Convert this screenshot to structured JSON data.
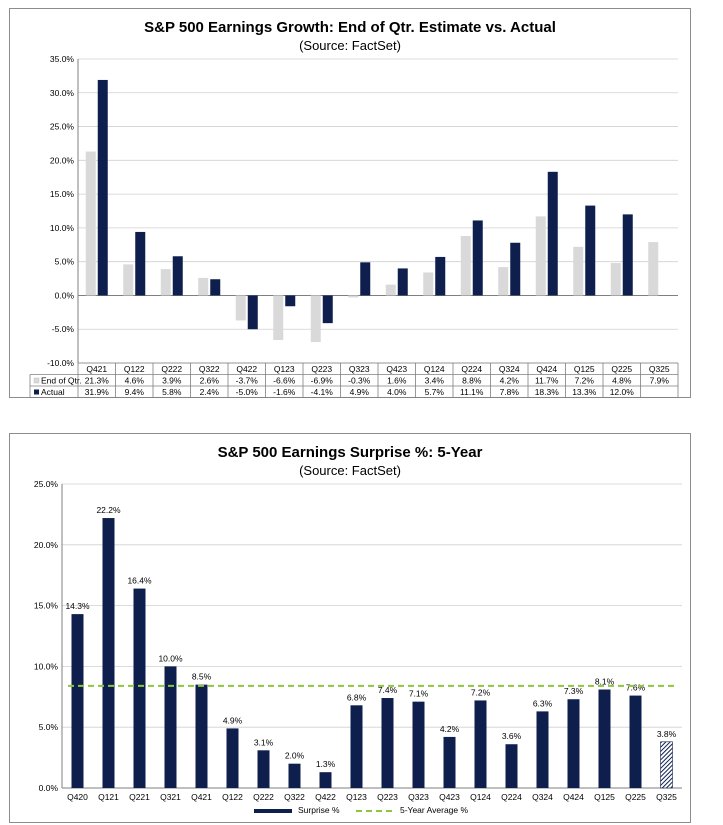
{
  "chart_data": [
    {
      "type": "bar",
      "title": "S&P 500 Earnings Growth: End of Qtr. Estimate vs. Actual",
      "subtitle": "(Source: FactSet)",
      "categories": [
        "Q421",
        "Q122",
        "Q222",
        "Q322",
        "Q422",
        "Q123",
        "Q223",
        "Q323",
        "Q423",
        "Q124",
        "Q224",
        "Q324",
        "Q424",
        "Q125",
        "Q225",
        "Q325"
      ],
      "series": [
        {
          "name": "End of Qtr.",
          "values": [
            21.3,
            4.6,
            3.9,
            2.6,
            -3.7,
            -6.6,
            -6.9,
            -0.3,
            1.6,
            3.4,
            8.8,
            4.2,
            11.7,
            7.2,
            4.8,
            7.9
          ],
          "labels": [
            "21.3%",
            "4.6%",
            "3.9%",
            "2.6%",
            "-3.7%",
            "-6.6%",
            "-6.9%",
            "-0.3%",
            "1.6%",
            "3.4%",
            "8.8%",
            "4.2%",
            "11.7%",
            "7.2%",
            "4.8%",
            "7.9%"
          ],
          "color": "#d9d9d9"
        },
        {
          "name": "Actual",
          "values": [
            31.9,
            9.4,
            5.8,
            2.4,
            -5.0,
            -1.6,
            -4.1,
            4.9,
            4.0,
            5.7,
            11.1,
            7.8,
            18.3,
            13.3,
            12.0,
            null
          ],
          "labels": [
            "31.9%",
            "9.4%",
            "5.8%",
            "2.4%",
            "-5.0%",
            "-1.6%",
            "-4.1%",
            "4.9%",
            "4.0%",
            "5.7%",
            "11.1%",
            "7.8%",
            "18.3%",
            "13.3%",
            "12.0%",
            ""
          ],
          "color": "#0f1f4d"
        }
      ],
      "ylim": [
        -10,
        35
      ],
      "yticks": [
        "-10.0%",
        "-5.0%",
        "0.0%",
        "5.0%",
        "10.0%",
        "15.0%",
        "20.0%",
        "25.0%",
        "30.0%",
        "35.0%"
      ],
      "grid": true,
      "legend": "data-table"
    },
    {
      "type": "bar",
      "title": "S&P 500 Earnings Surprise %: 5-Year",
      "subtitle": "(Source: FactSet)",
      "categories": [
        "Q420",
        "Q121",
        "Q221",
        "Q321",
        "Q421",
        "Q122",
        "Q222",
        "Q322",
        "Q422",
        "Q123",
        "Q223",
        "Q323",
        "Q423",
        "Q124",
        "Q224",
        "Q324",
        "Q424",
        "Q125",
        "Q225",
        "Q325"
      ],
      "series": [
        {
          "name": "Surprise %",
          "values": [
            14.3,
            22.2,
            16.4,
            10.0,
            8.5,
            4.9,
            3.1,
            2.0,
            1.3,
            6.8,
            7.4,
            7.1,
            4.2,
            7.2,
            3.6,
            6.3,
            7.3,
            8.1,
            7.6,
            3.8
          ],
          "labels": [
            "14.3%",
            "22.2%",
            "16.4%",
            "10.0%",
            "8.5%",
            "4.9%",
            "3.1%",
            "2.0%",
            "1.3%",
            "6.8%",
            "7.4%",
            "7.1%",
            "4.2%",
            "7.2%",
            "3.6%",
            "6.3%",
            "7.3%",
            "8.1%",
            "7.6%",
            "3.8%"
          ],
          "color": "#0f1f4d"
        }
      ],
      "average": {
        "name": "5-Year Average %",
        "value": 8.4,
        "color": "#8dc63f"
      },
      "ylim": [
        0,
        25
      ],
      "yticks": [
        "0.0%",
        "5.0%",
        "10.0%",
        "15.0%",
        "20.0%",
        "25.0%"
      ],
      "grid": true,
      "legend": "bottom"
    }
  ]
}
